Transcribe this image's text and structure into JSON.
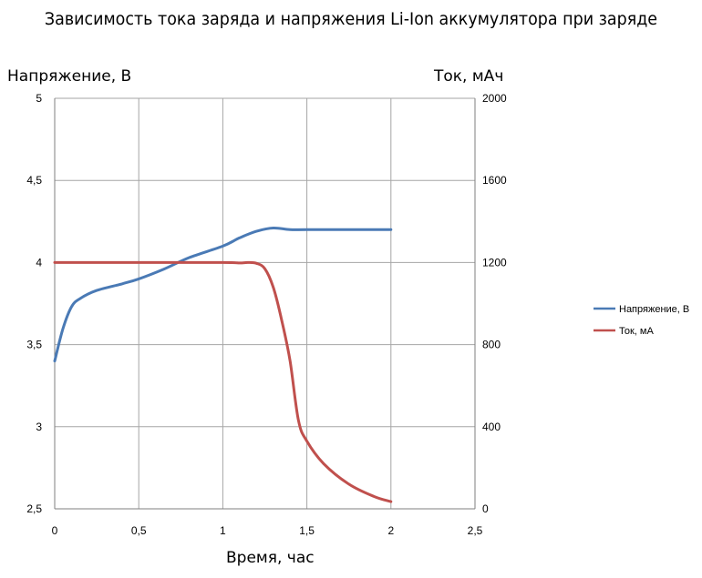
{
  "chart_data": {
    "type": "line",
    "title": "Зависимость тока заряда и напряжения Li-Ion аккумулятора при заряде",
    "xlabel": "Время, час",
    "ylabel_left": "Напряжение, В",
    "ylabel_right": "Ток, мАч",
    "xlim": [
      0,
      2.5
    ],
    "ylim_left": [
      2.5,
      5
    ],
    "ylim_right": [
      0,
      2000
    ],
    "x_ticks": [
      "0",
      "0,5",
      "1",
      "1,5",
      "2",
      "2,5"
    ],
    "y_left_ticks": [
      "2,5",
      "3",
      "3,5",
      "4",
      "4,5",
      "5"
    ],
    "y_right_ticks": [
      "0",
      "400",
      "800",
      "1200",
      "1600",
      "2000"
    ],
    "grid": true,
    "legend_position": "right",
    "series": [
      {
        "name": "Напряжение, В",
        "axis": "left",
        "color": "#4a7ab5",
        "x": [
          0,
          0.05,
          0.1,
          0.15,
          0.25,
          0.4,
          0.5,
          0.65,
          0.8,
          1.0,
          1.1,
          1.2,
          1.3,
          1.4,
          1.5,
          1.75,
          2.0
        ],
        "y": [
          3.4,
          3.6,
          3.73,
          3.78,
          3.83,
          3.87,
          3.9,
          3.96,
          4.03,
          4.1,
          4.15,
          4.19,
          4.21,
          4.2,
          4.2,
          4.2,
          4.2
        ]
      },
      {
        "name": "Ток, мА",
        "axis": "right",
        "color": "#c0504d",
        "x": [
          0,
          0.5,
          1.0,
          1.1,
          1.15,
          1.2,
          1.25,
          1.3,
          1.35,
          1.4,
          1.45,
          1.5,
          1.6,
          1.75,
          1.9,
          2.0
        ],
        "y": [
          1200,
          1200,
          1200,
          1198,
          1200,
          1196,
          1170,
          1080,
          920,
          720,
          430,
          330,
          220,
          120,
          60,
          35
        ]
      }
    ]
  }
}
